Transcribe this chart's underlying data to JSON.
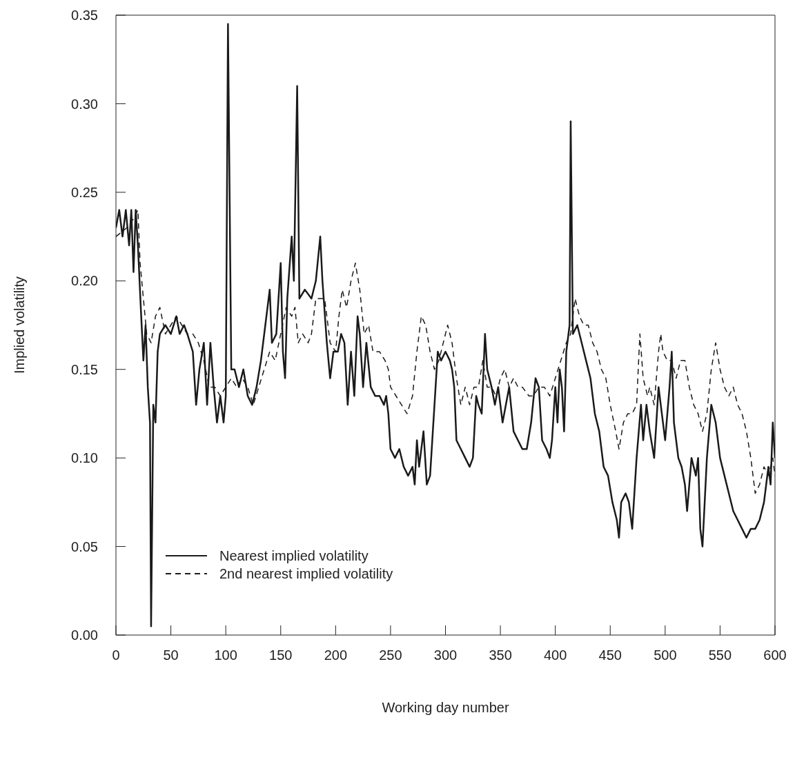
{
  "chart_data": {
    "type": "line",
    "xlabel": "Working day number",
    "ylabel": "Implied volatility",
    "xlim": [
      0,
      600
    ],
    "xticks": [
      0,
      50,
      100,
      150,
      200,
      250,
      300,
      350,
      400,
      450,
      500,
      550,
      600
    ],
    "ylim": [
      0,
      0.35
    ],
    "yticks": [
      {
        "value": 0,
        "label": "0.00"
      },
      {
        "value": 0.05,
        "label": "0.05"
      },
      {
        "value": 0.1,
        "label": "0.10"
      },
      {
        "value": 0.15,
        "label": "0.15"
      },
      {
        "value": 0.2,
        "label": "0.20"
      },
      {
        "value": 0.25,
        "label": "0.25"
      },
      {
        "value": 0.3,
        "label": "0.30"
      },
      {
        "value": 0.35,
        "label": "0.35"
      }
    ],
    "grid": false,
    "legend": "bottom left",
    "marker": "none",
    "series": [
      {
        "name": "Nearest implied volatility",
        "color": "#1a1a1a",
        "line_style": "solid",
        "x": [
          0,
          3,
          6,
          9,
          12,
          14,
          16,
          18,
          20,
          23,
          25,
          27,
          29,
          31,
          32,
          34,
          36,
          38,
          40,
          45,
          50,
          55,
          58,
          62,
          65,
          70,
          73,
          76,
          80,
          83,
          86,
          89,
          92,
          95,
          98,
          100,
          102,
          105,
          108,
          112,
          116,
          120,
          124,
          128,
          132,
          136,
          140,
          142,
          146,
          150,
          152,
          154,
          156,
          160,
          162,
          165,
          167,
          172,
          178,
          182,
          186,
          188,
          192,
          195,
          198,
          202,
          205,
          208,
          211,
          214,
          217,
          220,
          222,
          225,
          228,
          232,
          236,
          240,
          244,
          246,
          248,
          250,
          254,
          258,
          262,
          266,
          270,
          272,
          274,
          276,
          280,
          283,
          286,
          290,
          293,
          296,
          300,
          304,
          306,
          308,
          310,
          314,
          318,
          322,
          325,
          328,
          330,
          333,
          336,
          338,
          342,
          345,
          348,
          352,
          355,
          358,
          362,
          366,
          370,
          374,
          378,
          382,
          385,
          388,
          392,
          395,
          397,
          400,
          402,
          404,
          406,
          408,
          410,
          413,
          414,
          416,
          420,
          424,
          428,
          432,
          436,
          440,
          444,
          448,
          452,
          456,
          458,
          460,
          464,
          467,
          470,
          474,
          478,
          480,
          483,
          486,
          490,
          494,
          497,
          500,
          504,
          506,
          508,
          512,
          515,
          518,
          520,
          524,
          528,
          530,
          532,
          534,
          538,
          542,
          546,
          550,
          554,
          558,
          562,
          566,
          570,
          574,
          578,
          582,
          586,
          590,
          594,
          596,
          598,
          600
        ],
        "values": [
          0.23,
          0.24,
          0.225,
          0.24,
          0.22,
          0.24,
          0.205,
          0.24,
          0.22,
          0.18,
          0.155,
          0.175,
          0.14,
          0.12,
          0.005,
          0.13,
          0.12,
          0.16,
          0.17,
          0.175,
          0.17,
          0.18,
          0.17,
          0.175,
          0.17,
          0.16,
          0.13,
          0.15,
          0.165,
          0.13,
          0.165,
          0.14,
          0.12,
          0.135,
          0.12,
          0.135,
          0.345,
          0.15,
          0.15,
          0.14,
          0.15,
          0.135,
          0.13,
          0.14,
          0.155,
          0.175,
          0.195,
          0.165,
          0.17,
          0.21,
          0.16,
          0.145,
          0.19,
          0.225,
          0.2,
          0.31,
          0.19,
          0.195,
          0.19,
          0.2,
          0.225,
          0.2,
          0.165,
          0.145,
          0.16,
          0.16,
          0.17,
          0.165,
          0.13,
          0.16,
          0.135,
          0.18,
          0.17,
          0.14,
          0.165,
          0.14,
          0.135,
          0.135,
          0.13,
          0.135,
          0.125,
          0.105,
          0.1,
          0.105,
          0.095,
          0.09,
          0.095,
          0.085,
          0.11,
          0.095,
          0.115,
          0.085,
          0.09,
          0.13,
          0.16,
          0.155,
          0.16,
          0.155,
          0.15,
          0.14,
          0.11,
          0.105,
          0.1,
          0.095,
          0.1,
          0.135,
          0.13,
          0.125,
          0.17,
          0.15,
          0.14,
          0.13,
          0.14,
          0.12,
          0.13,
          0.14,
          0.115,
          0.11,
          0.105,
          0.105,
          0.12,
          0.145,
          0.14,
          0.11,
          0.105,
          0.1,
          0.11,
          0.14,
          0.12,
          0.15,
          0.14,
          0.115,
          0.16,
          0.175,
          0.29,
          0.17,
          0.175,
          0.165,
          0.155,
          0.145,
          0.125,
          0.115,
          0.095,
          0.09,
          0.075,
          0.065,
          0.055,
          0.075,
          0.08,
          0.075,
          0.06,
          0.1,
          0.13,
          0.11,
          0.13,
          0.115,
          0.1,
          0.14,
          0.125,
          0.11,
          0.14,
          0.16,
          0.12,
          0.1,
          0.095,
          0.085,
          0.07,
          0.1,
          0.09,
          0.1,
          0.06,
          0.05,
          0.1,
          0.13,
          0.12,
          0.1,
          0.09,
          0.08,
          0.07,
          0.065,
          0.06,
          0.055,
          0.06,
          0.06,
          0.065,
          0.075,
          0.095,
          0.085,
          0.12,
          0.1
        ]
      },
      {
        "name": "2nd nearest implied volatility",
        "color": "#1a1a1a",
        "line_style": "dashed",
        "x": [
          0,
          10,
          16,
          20,
          22,
          25,
          28,
          32,
          36,
          40,
          45,
          50,
          55,
          60,
          65,
          70,
          75,
          80,
          85,
          90,
          95,
          100,
          105,
          110,
          115,
          120,
          125,
          130,
          135,
          140,
          145,
          150,
          155,
          160,
          163,
          166,
          170,
          175,
          178,
          182,
          190,
          195,
          200,
          203,
          206,
          210,
          214,
          218,
          222,
          226,
          230,
          234,
          240,
          245,
          248,
          250,
          255,
          260,
          265,
          270,
          274,
          278,
          282,
          286,
          290,
          294,
          298,
          302,
          306,
          310,
          314,
          318,
          322,
          326,
          330,
          334,
          338,
          342,
          346,
          350,
          354,
          358,
          362,
          366,
          370,
          376,
          380,
          385,
          390,
          395,
          400,
          405,
          410,
          414,
          418,
          422,
          426,
          430,
          434,
          438,
          442,
          446,
          450,
          455,
          458,
          462,
          466,
          470,
          474,
          477,
          480,
          484,
          486,
          490,
          494,
          496,
          498,
          502,
          506,
          510,
          514,
          518,
          522,
          526,
          530,
          534,
          538,
          542,
          546,
          550,
          554,
          558,
          562,
          566,
          570,
          574,
          578,
          582,
          586,
          590,
          594,
          598,
          600
        ],
        "values": [
          0.225,
          0.23,
          0.235,
          0.24,
          0.21,
          0.19,
          0.17,
          0.165,
          0.18,
          0.185,
          0.17,
          0.175,
          0.18,
          0.175,
          0.17,
          0.17,
          0.165,
          0.155,
          0.14,
          0.14,
          0.135,
          0.14,
          0.145,
          0.14,
          0.145,
          0.14,
          0.13,
          0.14,
          0.15,
          0.16,
          0.155,
          0.17,
          0.185,
          0.18,
          0.185,
          0.165,
          0.17,
          0.165,
          0.17,
          0.19,
          0.19,
          0.165,
          0.16,
          0.18,
          0.195,
          0.185,
          0.2,
          0.21,
          0.195,
          0.17,
          0.175,
          0.16,
          0.16,
          0.155,
          0.15,
          0.14,
          0.135,
          0.13,
          0.125,
          0.135,
          0.16,
          0.18,
          0.175,
          0.16,
          0.15,
          0.155,
          0.165,
          0.175,
          0.165,
          0.145,
          0.13,
          0.14,
          0.13,
          0.14,
          0.14,
          0.155,
          0.14,
          0.14,
          0.135,
          0.145,
          0.15,
          0.14,
          0.145,
          0.14,
          0.14,
          0.135,
          0.135,
          0.14,
          0.14,
          0.135,
          0.145,
          0.155,
          0.165,
          0.17,
          0.19,
          0.18,
          0.175,
          0.175,
          0.165,
          0.16,
          0.15,
          0.145,
          0.13,
          0.115,
          0.105,
          0.12,
          0.125,
          0.125,
          0.13,
          0.17,
          0.145,
          0.135,
          0.14,
          0.13,
          0.16,
          0.17,
          0.16,
          0.155,
          0.155,
          0.145,
          0.155,
          0.155,
          0.14,
          0.13,
          0.125,
          0.115,
          0.125,
          0.15,
          0.165,
          0.15,
          0.14,
          0.135,
          0.14,
          0.13,
          0.125,
          0.115,
          0.1,
          0.08,
          0.085,
          0.095,
          0.09,
          0.1,
          0.09
        ]
      }
    ]
  }
}
